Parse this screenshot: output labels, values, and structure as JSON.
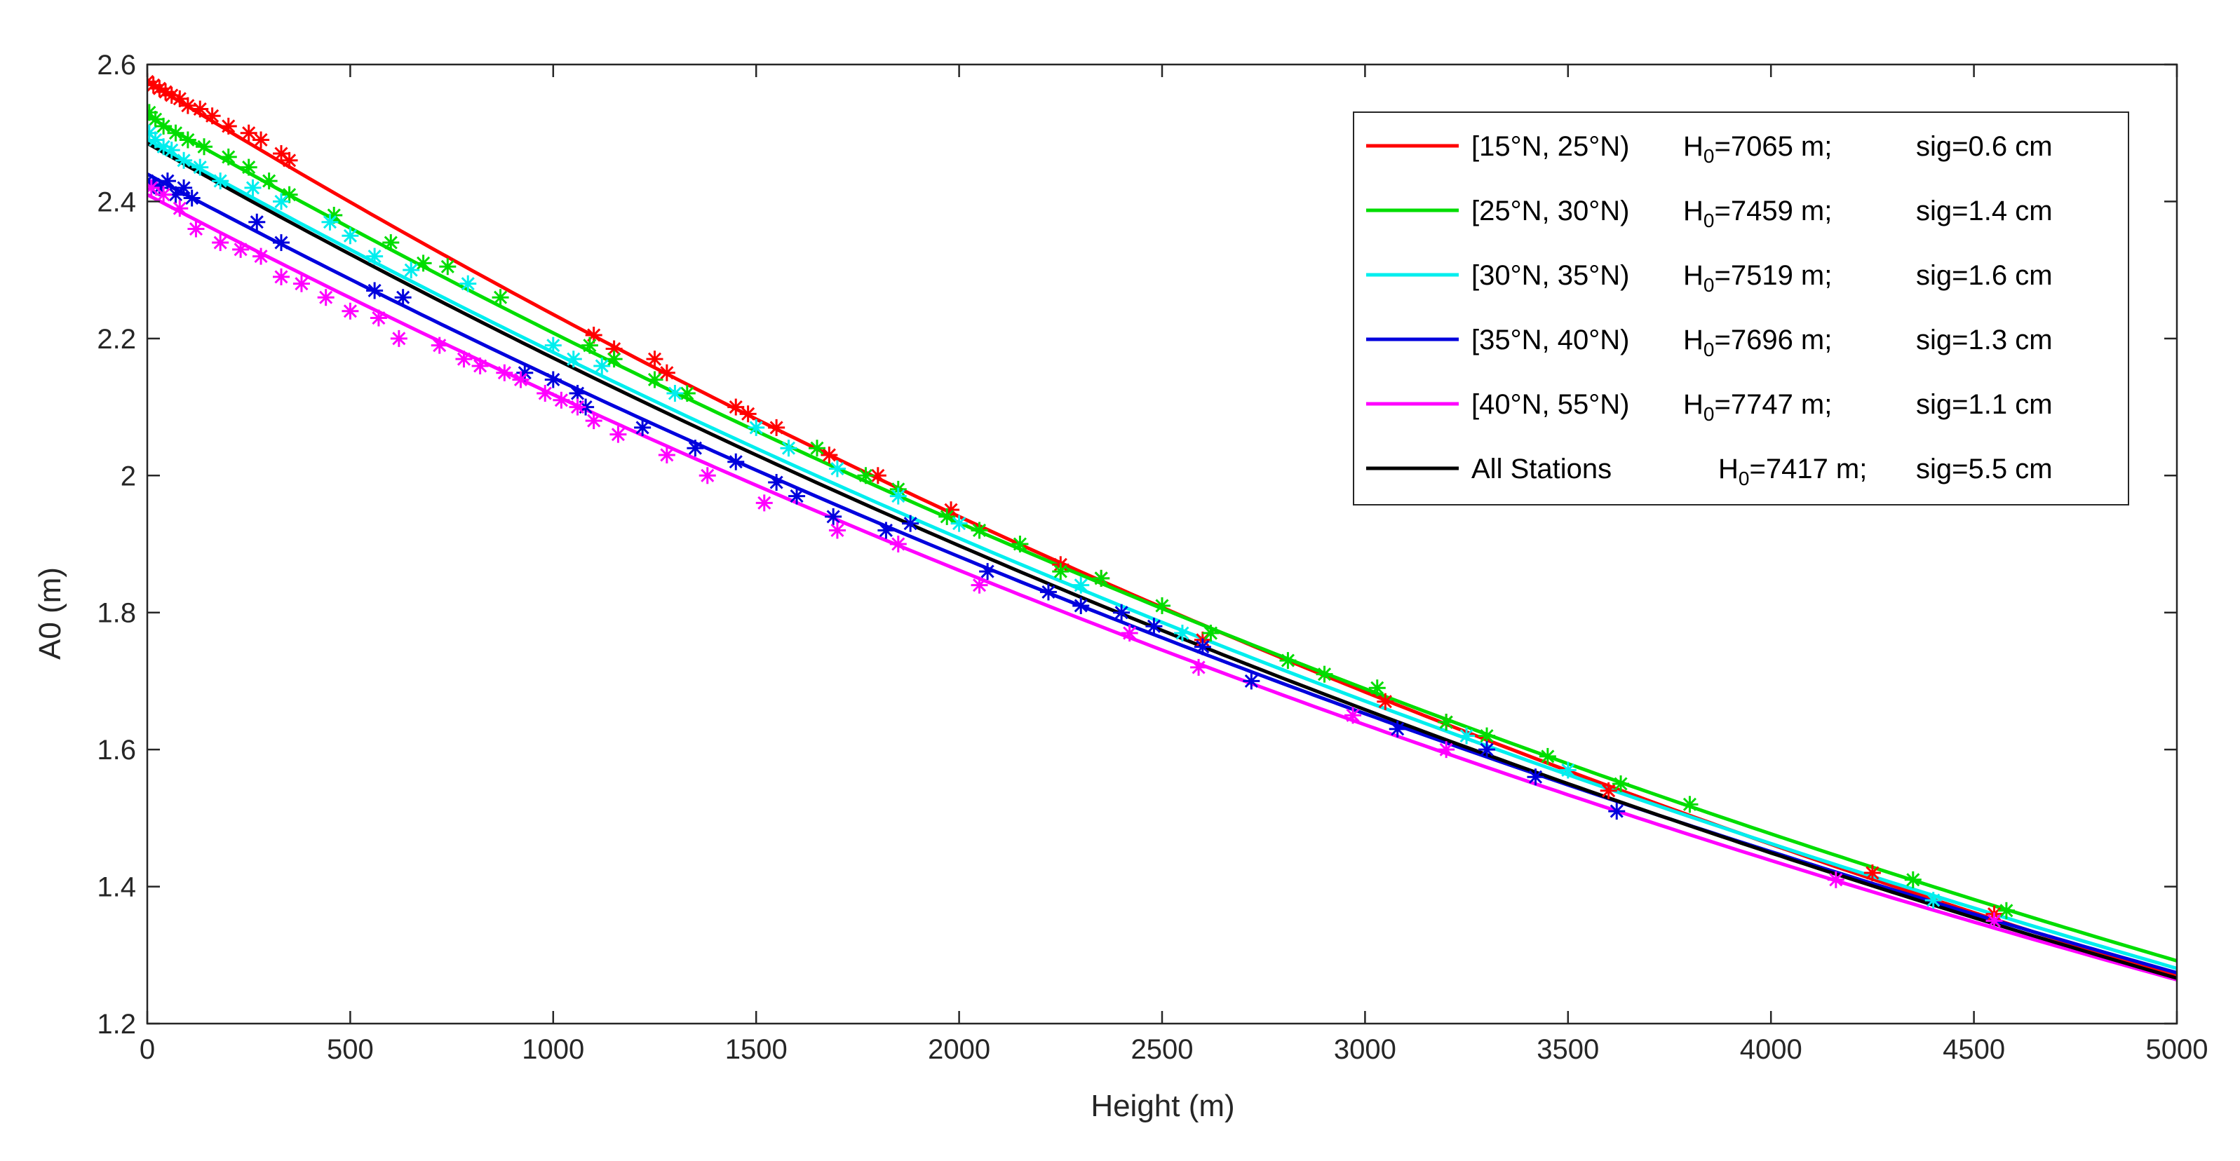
{
  "chart_data": {
    "type": "scatter",
    "title": "",
    "xlabel": "Height (m)",
    "ylabel": "A0 (m)",
    "xlim": [
      0,
      5000
    ],
    "ylim": [
      1.2,
      2.6
    ],
    "xticks": [
      0,
      500,
      1000,
      1500,
      2000,
      2500,
      3000,
      3500,
      4000,
      4500,
      5000
    ],
    "xtick_labels": [
      "0",
      "500",
      "1000",
      "1500",
      "2000",
      "2500",
      "3000",
      "3500",
      "4000",
      "4500",
      "5000"
    ],
    "yticks": [
      1.2,
      1.4,
      1.6,
      1.8,
      2.0,
      2.2,
      2.4,
      2.6
    ],
    "ytick_labels": [
      "1.2",
      "1.4",
      "1.6",
      "1.8",
      "2",
      "2.2",
      "2.4",
      "2.6"
    ],
    "grid": false,
    "legend_position": "top-right",
    "series": [
      {
        "name": "[15°N, 25°N)",
        "h0_prefix": "H",
        "h0_sub": "0",
        "h0_value": "=7065 m;",
        "sig": "sig=0.6 cm",
        "color": "#ff0000",
        "H0": 7065,
        "A0_at_zero": 2.575,
        "points": [
          [
            0,
            2.575
          ],
          [
            15,
            2.57
          ],
          [
            30,
            2.565
          ],
          [
            45,
            2.56
          ],
          [
            60,
            2.555
          ],
          [
            80,
            2.55
          ],
          [
            100,
            2.54
          ],
          [
            130,
            2.535
          ],
          [
            160,
            2.525
          ],
          [
            200,
            2.51
          ],
          [
            250,
            2.5
          ],
          [
            280,
            2.49
          ],
          [
            330,
            2.47
          ],
          [
            350,
            2.46
          ],
          [
            1100,
            2.205
          ],
          [
            1150,
            2.185
          ],
          [
            1250,
            2.17
          ],
          [
            1280,
            2.15
          ],
          [
            1450,
            2.1
          ],
          [
            1480,
            2.09
          ],
          [
            1550,
            2.07
          ],
          [
            1680,
            2.03
          ],
          [
            1800,
            2.0
          ],
          [
            1980,
            1.95
          ],
          [
            2250,
            1.87
          ],
          [
            2350,
            1.85
          ],
          [
            2600,
            1.76
          ],
          [
            3050,
            1.67
          ],
          [
            3200,
            1.64
          ],
          [
            3600,
            1.54
          ],
          [
            4250,
            1.42
          ],
          [
            4550,
            1.36
          ]
        ]
      },
      {
        "name": "[25°N, 30°N)",
        "h0_prefix": "H",
        "h0_sub": "0",
        "h0_value": "=7459 m;",
        "sig": "sig=1.4 cm",
        "color": "#00dd00",
        "H0": 7459,
        "A0_at_zero": 2.525,
        "points": [
          [
            5,
            2.53
          ],
          [
            20,
            2.52
          ],
          [
            40,
            2.51
          ],
          [
            70,
            2.5
          ],
          [
            100,
            2.49
          ],
          [
            140,
            2.48
          ],
          [
            200,
            2.465
          ],
          [
            250,
            2.45
          ],
          [
            300,
            2.43
          ],
          [
            350,
            2.41
          ],
          [
            460,
            2.38
          ],
          [
            600,
            2.34
          ],
          [
            680,
            2.31
          ],
          [
            740,
            2.305
          ],
          [
            870,
            2.26
          ],
          [
            1090,
            2.19
          ],
          [
            1150,
            2.17
          ],
          [
            1250,
            2.14
          ],
          [
            1330,
            2.12
          ],
          [
            1650,
            2.04
          ],
          [
            1770,
            2.0
          ],
          [
            1850,
            1.98
          ],
          [
            1970,
            1.94
          ],
          [
            2050,
            1.92
          ],
          [
            2150,
            1.9
          ],
          [
            2250,
            1.86
          ],
          [
            2350,
            1.85
          ],
          [
            2500,
            1.81
          ],
          [
            2620,
            1.77
          ],
          [
            2810,
            1.73
          ],
          [
            2900,
            1.71
          ],
          [
            3030,
            1.69
          ],
          [
            3200,
            1.64
          ],
          [
            3300,
            1.62
          ],
          [
            3450,
            1.59
          ],
          [
            3630,
            1.55
          ],
          [
            3800,
            1.52
          ],
          [
            4350,
            1.41
          ],
          [
            4580,
            1.365
          ]
        ]
      },
      {
        "name": "[30°N, 35°N)",
        "h0_prefix": "H",
        "h0_sub": "0",
        "h0_value": "=7519 m;",
        "sig": "sig=1.6 cm",
        "color": "#00eeee",
        "H0": 7519,
        "A0_at_zero": 2.49,
        "points": [
          [
            5,
            2.5
          ],
          [
            20,
            2.49
          ],
          [
            40,
            2.48
          ],
          [
            60,
            2.475
          ],
          [
            90,
            2.46
          ],
          [
            130,
            2.45
          ],
          [
            180,
            2.43
          ],
          [
            260,
            2.42
          ],
          [
            330,
            2.4
          ],
          [
            450,
            2.37
          ],
          [
            500,
            2.35
          ],
          [
            560,
            2.32
          ],
          [
            650,
            2.3
          ],
          [
            790,
            2.28
          ],
          [
            1000,
            2.19
          ],
          [
            1050,
            2.17
          ],
          [
            1120,
            2.16
          ],
          [
            1300,
            2.12
          ],
          [
            1500,
            2.07
          ],
          [
            1580,
            2.04
          ],
          [
            1700,
            2.01
          ],
          [
            1850,
            1.97
          ],
          [
            2000,
            1.93
          ],
          [
            2300,
            1.84
          ],
          [
            2550,
            1.77
          ],
          [
            3250,
            1.62
          ],
          [
            3500,
            1.57
          ],
          [
            4400,
            1.38
          ]
        ]
      },
      {
        "name": "[35°N, 40°N)",
        "h0_prefix": "H",
        "h0_sub": "0",
        "h0_value": "=7696 m;",
        "sig": "sig=1.3 cm",
        "color": "#0000dd",
        "H0": 7696,
        "A0_at_zero": 2.44,
        "points": [
          [
            0,
            2.43
          ],
          [
            15,
            2.425
          ],
          [
            30,
            2.42
          ],
          [
            50,
            2.43
          ],
          [
            70,
            2.41
          ],
          [
            90,
            2.42
          ],
          [
            110,
            2.405
          ],
          [
            270,
            2.37
          ],
          [
            330,
            2.34
          ],
          [
            560,
            2.27
          ],
          [
            630,
            2.26
          ],
          [
            930,
            2.15
          ],
          [
            1000,
            2.14
          ],
          [
            1060,
            2.12
          ],
          [
            1080,
            2.1
          ],
          [
            1220,
            2.07
          ],
          [
            1350,
            2.04
          ],
          [
            1450,
            2.02
          ],
          [
            1550,
            1.99
          ],
          [
            1600,
            1.97
          ],
          [
            1690,
            1.94
          ],
          [
            1820,
            1.92
          ],
          [
            1880,
            1.93
          ],
          [
            2070,
            1.86
          ],
          [
            2220,
            1.83
          ],
          [
            2300,
            1.81
          ],
          [
            2400,
            1.8
          ],
          [
            2480,
            1.78
          ],
          [
            2600,
            1.75
          ],
          [
            2720,
            1.7
          ],
          [
            3080,
            1.63
          ],
          [
            3300,
            1.6
          ],
          [
            3420,
            1.56
          ],
          [
            3620,
            1.51
          ]
        ]
      },
      {
        "name": "[40°N, 55°N)",
        "h0_prefix": "H",
        "h0_sub": "0",
        "h0_value": "=7747 m;",
        "sig": "sig=1.1 cm",
        "color": "#ff00ff",
        "H0": 7747,
        "A0_at_zero": 2.41,
        "points": [
          [
            10,
            2.42
          ],
          [
            40,
            2.41
          ],
          [
            80,
            2.39
          ],
          [
            120,
            2.36
          ],
          [
            180,
            2.34
          ],
          [
            230,
            2.33
          ],
          [
            280,
            2.32
          ],
          [
            330,
            2.29
          ],
          [
            380,
            2.28
          ],
          [
            440,
            2.26
          ],
          [
            500,
            2.24
          ],
          [
            570,
            2.23
          ],
          [
            620,
            2.2
          ],
          [
            720,
            2.19
          ],
          [
            780,
            2.17
          ],
          [
            820,
            2.16
          ],
          [
            880,
            2.15
          ],
          [
            920,
            2.14
          ],
          [
            980,
            2.12
          ],
          [
            1020,
            2.11
          ],
          [
            1060,
            2.1
          ],
          [
            1100,
            2.08
          ],
          [
            1160,
            2.06
          ],
          [
            1280,
            2.03
          ],
          [
            1380,
            2.0
          ],
          [
            1520,
            1.96
          ],
          [
            1700,
            1.92
          ],
          [
            1850,
            1.9
          ],
          [
            2050,
            1.84
          ],
          [
            2420,
            1.77
          ],
          [
            2590,
            1.72
          ],
          [
            2970,
            1.65
          ],
          [
            3200,
            1.6
          ],
          [
            4160,
            1.41
          ],
          [
            4550,
            1.35
          ]
        ]
      },
      {
        "name": "All Stations",
        "h0_prefix": "H",
        "h0_sub": "0",
        "h0_value": "=7417 m;",
        "sig": "sig=5.5 cm",
        "color": "#000000",
        "H0": 7417,
        "A0_at_zero": 2.485,
        "points": []
      }
    ]
  }
}
